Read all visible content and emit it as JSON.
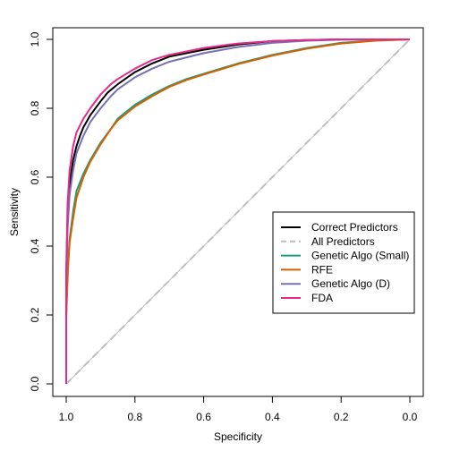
{
  "chart_data": {
    "type": "line",
    "xlabel": "Specificity",
    "ylabel": "Sensitivity",
    "x_reversed": true,
    "xlim": [
      1.0,
      0.0
    ],
    "ylim": [
      0.0,
      1.0
    ],
    "x_ticks": [
      "1.0",
      "0.8",
      "0.6",
      "0.4",
      "0.2",
      "0.0"
    ],
    "y_ticks": [
      "0.0",
      "0.2",
      "0.4",
      "0.6",
      "0.8",
      "1.0"
    ],
    "grid": false,
    "legend_position": "center-right",
    "reference_line": {
      "from": [
        1.0,
        0.0
      ],
      "to": [
        0.0,
        1.0
      ],
      "color": "#bebebe"
    },
    "series": [
      {
        "name": "Correct Predictors",
        "color": "#000000",
        "dash": "solid",
        "points": [
          [
            1.0,
            0.0
          ],
          [
            1.0,
            0.3
          ],
          [
            0.996,
            0.48
          ],
          [
            0.99,
            0.58
          ],
          [
            0.98,
            0.65
          ],
          [
            0.97,
            0.69
          ],
          [
            0.96,
            0.72
          ],
          [
            0.95,
            0.745
          ],
          [
            0.93,
            0.78
          ],
          [
            0.9,
            0.82
          ],
          [
            0.88,
            0.845
          ],
          [
            0.85,
            0.87
          ],
          [
            0.8,
            0.905
          ],
          [
            0.75,
            0.93
          ],
          [
            0.7,
            0.95
          ],
          [
            0.6,
            0.97
          ],
          [
            0.5,
            0.985
          ],
          [
            0.4,
            0.995
          ],
          [
            0.3,
            0.998
          ],
          [
            0.2,
            1.0
          ],
          [
            0.0,
            1.0
          ]
        ]
      },
      {
        "name": "All Predictors",
        "color": "#bebebe",
        "dash": "dashed",
        "points": [
          [
            1.0,
            0.0
          ],
          [
            0.8,
            0.2
          ],
          [
            0.6,
            0.4
          ],
          [
            0.4,
            0.6
          ],
          [
            0.2,
            0.8
          ],
          [
            0.1,
            0.9
          ],
          [
            0.0,
            1.0
          ]
        ]
      },
      {
        "name": "Genetic Algo (Small)",
        "color": "#1b9e77",
        "dash": "solid",
        "points": [
          [
            1.0,
            0.0
          ],
          [
            1.0,
            0.2
          ],
          [
            0.995,
            0.35
          ],
          [
            0.99,
            0.42
          ],
          [
            0.98,
            0.5
          ],
          [
            0.97,
            0.56
          ],
          [
            0.95,
            0.61
          ],
          [
            0.93,
            0.65
          ],
          [
            0.9,
            0.7
          ],
          [
            0.87,
            0.74
          ],
          [
            0.85,
            0.77
          ],
          [
            0.8,
            0.81
          ],
          [
            0.75,
            0.84
          ],
          [
            0.7,
            0.865
          ],
          [
            0.65,
            0.885
          ],
          [
            0.6,
            0.9
          ],
          [
            0.5,
            0.93
          ],
          [
            0.4,
            0.955
          ],
          [
            0.3,
            0.975
          ],
          [
            0.2,
            0.99
          ],
          [
            0.1,
            0.997
          ],
          [
            0.0,
            1.0
          ]
        ]
      },
      {
        "name": "RFE",
        "color": "#d95f02",
        "dash": "solid",
        "points": [
          [
            1.0,
            0.0
          ],
          [
            1.0,
            0.19
          ],
          [
            0.995,
            0.33
          ],
          [
            0.99,
            0.41
          ],
          [
            0.98,
            0.48
          ],
          [
            0.97,
            0.54
          ],
          [
            0.95,
            0.6
          ],
          [
            0.93,
            0.645
          ],
          [
            0.9,
            0.695
          ],
          [
            0.87,
            0.74
          ],
          [
            0.85,
            0.765
          ],
          [
            0.8,
            0.805
          ],
          [
            0.75,
            0.835
          ],
          [
            0.7,
            0.862
          ],
          [
            0.65,
            0.882
          ],
          [
            0.6,
            0.898
          ],
          [
            0.5,
            0.928
          ],
          [
            0.4,
            0.953
          ],
          [
            0.3,
            0.973
          ],
          [
            0.2,
            0.988
          ],
          [
            0.1,
            0.996
          ],
          [
            0.0,
            1.0
          ]
        ]
      },
      {
        "name": "Genetic Algo (D)",
        "color": "#7570b3",
        "dash": "solid",
        "points": [
          [
            1.0,
            0.0
          ],
          [
            1.0,
            0.28
          ],
          [
            0.996,
            0.45
          ],
          [
            0.99,
            0.55
          ],
          [
            0.98,
            0.62
          ],
          [
            0.97,
            0.67
          ],
          [
            0.95,
            0.72
          ],
          [
            0.93,
            0.76
          ],
          [
            0.9,
            0.8
          ],
          [
            0.87,
            0.835
          ],
          [
            0.85,
            0.855
          ],
          [
            0.8,
            0.89
          ],
          [
            0.75,
            0.915
          ],
          [
            0.7,
            0.935
          ],
          [
            0.6,
            0.96
          ],
          [
            0.5,
            0.978
          ],
          [
            0.4,
            0.99
          ],
          [
            0.3,
            0.996
          ],
          [
            0.2,
            0.999
          ],
          [
            0.0,
            1.0
          ]
        ]
      },
      {
        "name": "FDA",
        "color": "#e7298a",
        "dash": "solid",
        "points": [
          [
            1.0,
            0.0
          ],
          [
            1.0,
            0.33
          ],
          [
            0.996,
            0.52
          ],
          [
            0.99,
            0.62
          ],
          [
            0.98,
            0.69
          ],
          [
            0.97,
            0.73
          ],
          [
            0.95,
            0.77
          ],
          [
            0.93,
            0.8
          ],
          [
            0.9,
            0.84
          ],
          [
            0.87,
            0.87
          ],
          [
            0.85,
            0.885
          ],
          [
            0.8,
            0.915
          ],
          [
            0.75,
            0.94
          ],
          [
            0.7,
            0.955
          ],
          [
            0.6,
            0.975
          ],
          [
            0.5,
            0.988
          ],
          [
            0.4,
            0.995
          ],
          [
            0.3,
            0.998
          ],
          [
            0.2,
            1.0
          ],
          [
            0.0,
            1.0
          ]
        ]
      }
    ]
  }
}
